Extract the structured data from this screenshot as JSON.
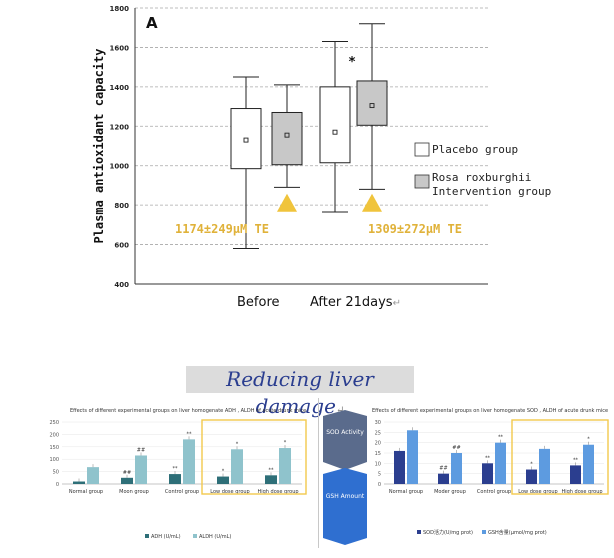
{
  "chart_data": [
    {
      "type": "box",
      "panel_label": "A",
      "ylabel": "Plasma antioxidant capacity",
      "ylim": [
        400,
        1800
      ],
      "yticks": [
        400,
        600,
        800,
        1000,
        1200,
        1400,
        1600,
        1800
      ],
      "grid": "horizontal dashed",
      "categories": [
        "Before",
        "After 21days"
      ],
      "series": [
        {
          "name": "Placebo group",
          "color": "#ffffff",
          "boxes": [
            {
              "whisker_low": 580,
              "q1": 985,
              "median": 1130,
              "q3": 1290,
              "whisker_high": 1450
            },
            {
              "whisker_low": 765,
              "q1": 1015,
              "median": 1170,
              "q3": 1400,
              "whisker_high": 1630
            }
          ]
        },
        {
          "name": "Rosa roxburghii Intervention group",
          "color": "#c8c8c8",
          "boxes": [
            {
              "whisker_low": 890,
              "q1": 1005,
              "median": 1155,
              "q3": 1270,
              "whisker_high": 1410
            },
            {
              "whisker_low": 880,
              "q1": 1205,
              "median": 1305,
              "q3": 1430,
              "whisker_high": 1720
            }
          ]
        }
      ],
      "annotations": {
        "significance_marker": "*",
        "stat_before": "1174±249μM TE",
        "stat_after": "1309±272μM TE",
        "triangle_color": "#f0c43c"
      },
      "legend_position": "right"
    },
    {
      "type": "bar",
      "title": "Effects of different experimental groups on liver homogenate ADH , ALDH of acute drunk mice",
      "categories": [
        "Normal group",
        "Moon group",
        "Control group",
        "Low dose group",
        "High dose group"
      ],
      "ylim": [
        0,
        250
      ],
      "yticks": [
        0,
        50,
        100,
        150,
        200,
        250
      ],
      "series": [
        {
          "name": "ADH (U/mL)",
          "color": "#2e6f78",
          "values": [
            10,
            25,
            40,
            30,
            35
          ]
        },
        {
          "name": "ALDH (U/mL)",
          "color": "#8fc3cc",
          "values": [
            68,
            115,
            180,
            140,
            145
          ]
        }
      ],
      "markers": [
        "",
        "##",
        "**",
        "*",
        "**"
      ],
      "markers_top": [
        "",
        "##",
        "**",
        "*",
        "*"
      ],
      "highlight_color": "#f2c94c"
    },
    {
      "type": "bar",
      "title": "Effects of different experimental groups on liver homogenate SOD , ALDH of acute drunk mice",
      "categories": [
        "Normal group",
        "Moder group",
        "Control group",
        "Low dose group",
        "High dose group"
      ],
      "ylim": [
        0,
        30
      ],
      "yticks": [
        0,
        5,
        10,
        15,
        20,
        25,
        30
      ],
      "series": [
        {
          "name": "SOD活力(U/mg prot)",
          "color": "#2b3e8f",
          "values": [
            16,
            5,
            10,
            7,
            9
          ]
        },
        {
          "name": "GSH含量(μmol/mg prot)",
          "color": "#5d9be0",
          "values": [
            26,
            15,
            20,
            17,
            19
          ]
        }
      ],
      "markers": [
        "",
        "##",
        "**",
        "*",
        "**"
      ],
      "markers_top": [
        "",
        "##",
        "**",
        "",
        "*"
      ],
      "highlight_color": "#f2c94c"
    }
  ],
  "section_title": "Reducing liver damage",
  "section_title_mark": "↵",
  "x_label_after_mark": "↵",
  "side_tags": [
    {
      "text": "SOD Activity",
      "color": "#5a6b8c"
    },
    {
      "text": "GSH Amount",
      "color": "#2f6fd0"
    }
  ]
}
